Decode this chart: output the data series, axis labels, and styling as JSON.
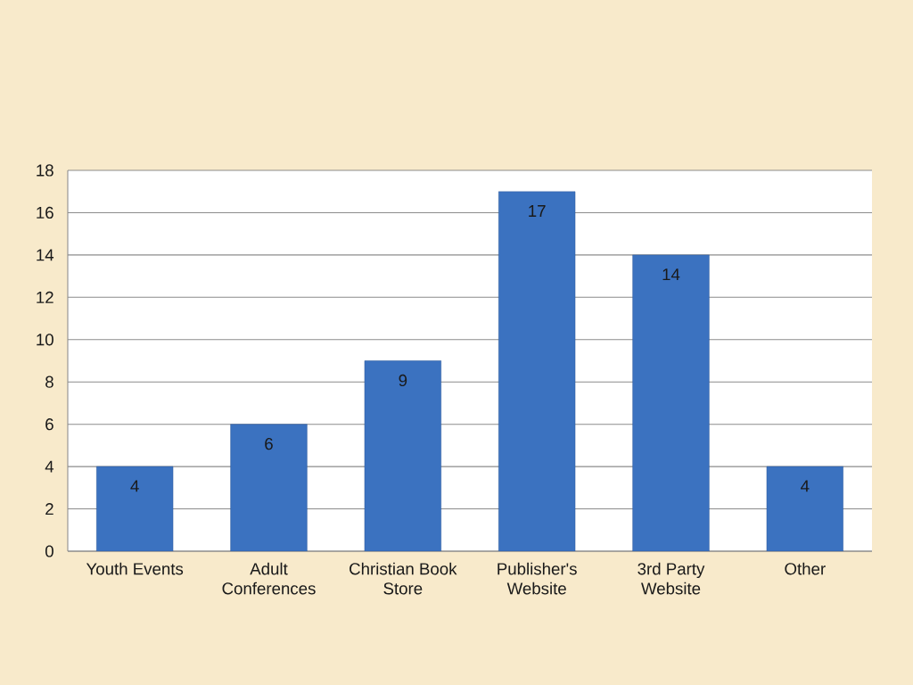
{
  "chart_data": {
    "type": "bar",
    "categories": [
      "Youth Events",
      "Adult Conferences",
      "Christian Book Store",
      "Publisher's Website",
      "3rd Party Website",
      "Other"
    ],
    "values": [
      4,
      6,
      9,
      17,
      14,
      4
    ],
    "color": "#3b72c0",
    "ylim": [
      0,
      18
    ],
    "yticks": [
      0,
      2,
      4,
      6,
      8,
      10,
      12,
      14,
      16,
      18
    ],
    "grid": "y",
    "data_labels": true
  }
}
